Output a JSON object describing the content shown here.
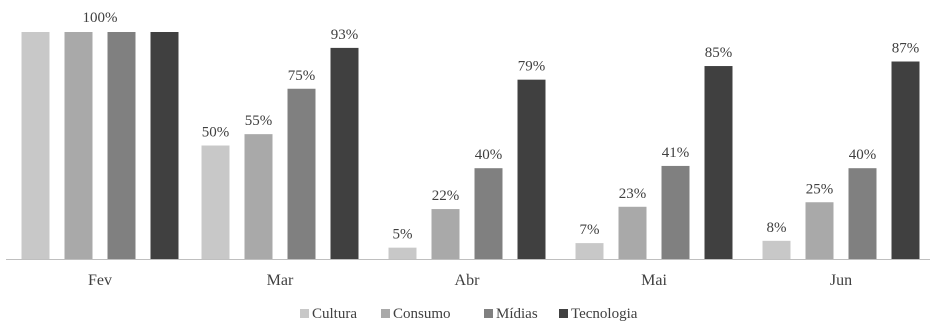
{
  "chart_data": {
    "type": "bar",
    "categories": [
      "Fev",
      "Mar",
      "Abr",
      "Mai",
      "Jun"
    ],
    "series": [
      {
        "name": "Cultura",
        "color": "#c8c8c8",
        "values": [
          100,
          50,
          5,
          7,
          8
        ],
        "labels": [
          "",
          "50%",
          "5%",
          "7%",
          "8%"
        ]
      },
      {
        "name": "Consumo",
        "color": "#a9a9a9",
        "values": [
          100,
          55,
          22,
          23,
          25
        ],
        "labels": [
          "",
          "55%",
          "22%",
          "23%",
          "25%"
        ]
      },
      {
        "name": "Mídias",
        "color": "#808080",
        "values": [
          100,
          75,
          40,
          41,
          40
        ],
        "labels": [
          "",
          "75%",
          "40%",
          "41%",
          "40%"
        ]
      },
      {
        "name": "Tecnologia",
        "color": "#404040",
        "values": [
          100,
          93,
          79,
          85,
          87
        ],
        "labels": [
          "",
          "93%",
          "79%",
          "85%",
          "87%"
        ]
      }
    ],
    "group_labels": [
      "100%",
      "",
      "",
      "",
      ""
    ],
    "ylim": [
      0,
      100
    ],
    "grid": false,
    "legend_position": "bottom",
    "title": "",
    "xlabel": "",
    "ylabel": ""
  }
}
